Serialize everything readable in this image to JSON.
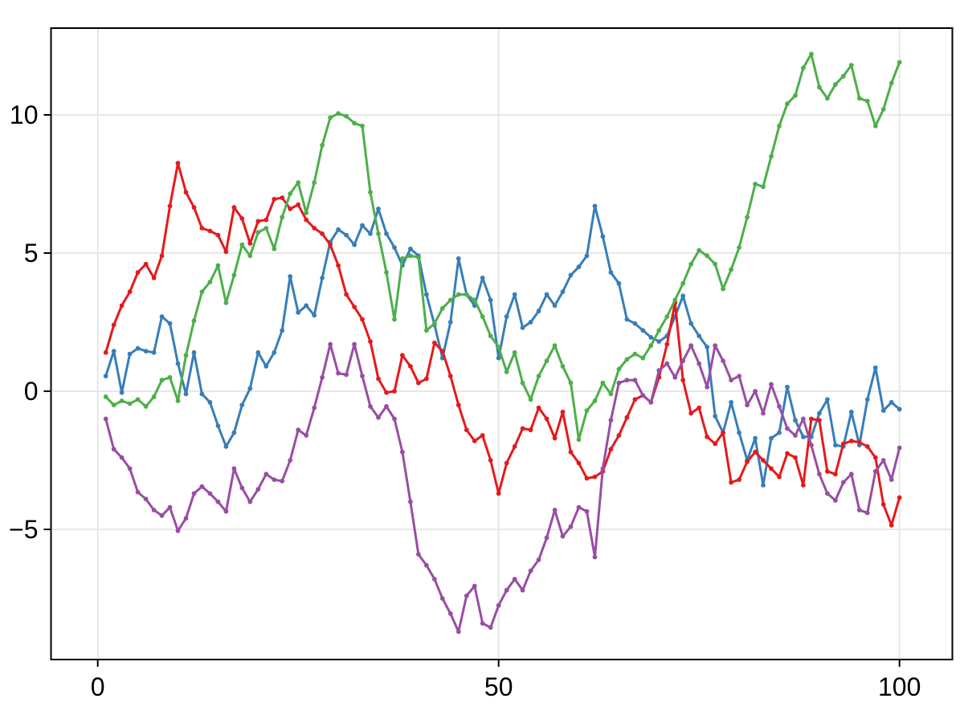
{
  "chart_data": {
    "type": "line",
    "title": "",
    "xlabel": "",
    "ylabel": "",
    "x_start": 1,
    "x_step": 1,
    "n_points": 100,
    "xlim": [
      -5.8,
      106.6
    ],
    "ylim": [
      -9.7,
      13.14
    ],
    "x_ticks": [
      0,
      50,
      100
    ],
    "x_tick_labels": [
      "0",
      "50",
      "100"
    ],
    "y_ticks": [
      -5,
      0,
      5,
      10
    ],
    "y_tick_labels": [
      "−5",
      "0",
      "5",
      "10"
    ],
    "grid": true,
    "legend_position": "none",
    "frame": "box",
    "series": [
      {
        "name": "series-1-blue",
        "color": "#377EB8",
        "values": [
          0.55,
          1.45,
          -0.05,
          1.35,
          1.55,
          1.45,
          1.4,
          2.7,
          2.45,
          1.0,
          -0.1,
          1.4,
          -0.1,
          -0.4,
          -1.25,
          -2.0,
          -1.5,
          -0.5,
          0.1,
          1.4,
          0.9,
          1.4,
          2.2,
          4.15,
          2.85,
          3.1,
          2.75,
          4.1,
          5.4,
          5.85,
          5.65,
          5.3,
          6.0,
          5.7,
          6.6,
          5.7,
          5.2,
          4.55,
          5.15,
          4.9,
          3.5,
          2.4,
          1.2,
          2.5,
          4.8,
          3.5,
          3.1,
          4.1,
          3.3,
          1.2,
          2.7,
          3.5,
          2.3,
          2.5,
          2.9,
          3.5,
          3.1,
          3.6,
          4.2,
          4.5,
          4.9,
          6.7,
          5.6,
          4.3,
          3.9,
          2.6,
          2.45,
          2.2,
          1.95,
          1.8,
          2.0,
          2.7,
          3.45,
          2.45,
          2.0,
          1.6,
          -0.9,
          -1.5,
          -0.4,
          -1.5,
          -2.5,
          -1.7,
          -3.4,
          -1.7,
          -1.5,
          0.15,
          -1.05,
          -1.65,
          -1.65,
          -0.8,
          -0.3,
          -1.95,
          -2.0,
          -0.75,
          -1.95,
          -0.3,
          0.85,
          -0.7,
          -0.4,
          -0.65
        ]
      },
      {
        "name": "series-2-red",
        "color": "#E41A1C",
        "values": [
          1.4,
          2.4,
          3.1,
          3.6,
          4.3,
          4.6,
          4.1,
          4.9,
          6.7,
          8.25,
          7.2,
          6.65,
          5.9,
          5.8,
          5.65,
          5.05,
          6.65,
          6.25,
          5.35,
          6.15,
          6.2,
          6.95,
          7.0,
          6.6,
          6.75,
          6.2,
          5.9,
          5.7,
          5.3,
          4.55,
          3.5,
          3.05,
          2.6,
          1.8,
          0.45,
          -0.05,
          0.0,
          1.3,
          0.9,
          0.3,
          0.45,
          1.75,
          1.45,
          0.55,
          -0.5,
          -1.4,
          -1.8,
          -1.6,
          -2.5,
          -3.7,
          -2.6,
          -2.0,
          -1.35,
          -1.4,
          -0.6,
          -1.0,
          -1.7,
          -0.75,
          -2.2,
          -2.6,
          -3.15,
          -3.1,
          -2.9,
          -2.1,
          -1.6,
          -0.95,
          -0.3,
          -0.15,
          -0.4,
          0.5,
          1.7,
          3.2,
          0.4,
          -0.8,
          -0.6,
          -1.65,
          -1.9,
          -1.5,
          -3.3,
          -3.2,
          -2.55,
          -2.2,
          -2.5,
          -2.8,
          -3.1,
          -2.25,
          -2.4,
          -3.4,
          -1.0,
          -1.05,
          -2.9,
          -3.0,
          -1.9,
          -1.8,
          -1.85,
          -2.0,
          -2.4,
          -4.1,
          -4.85,
          -3.85
        ]
      },
      {
        "name": "series-3-green",
        "color": "#4DAF4A",
        "values": [
          -0.2,
          -0.5,
          -0.35,
          -0.45,
          -0.3,
          -0.55,
          -0.2,
          0.4,
          0.5,
          -0.35,
          1.3,
          2.55,
          3.6,
          3.95,
          4.55,
          3.2,
          4.2,
          5.3,
          4.9,
          5.75,
          5.9,
          5.15,
          6.3,
          7.15,
          7.55,
          6.45,
          7.55,
          8.9,
          9.9,
          10.05,
          9.95,
          9.7,
          9.6,
          7.2,
          5.7,
          4.3,
          2.6,
          4.8,
          4.9,
          4.85,
          2.2,
          2.45,
          3.0,
          3.3,
          3.5,
          3.5,
          3.3,
          2.7,
          2.0,
          1.6,
          0.7,
          1.4,
          0.3,
          -0.3,
          0.55,
          1.1,
          1.65,
          0.9,
          0.3,
          -1.75,
          -0.7,
          -0.35,
          0.3,
          -0.1,
          0.8,
          1.15,
          1.35,
          1.2,
          1.65,
          2.2,
          2.7,
          3.3,
          3.9,
          4.6,
          5.1,
          4.9,
          4.6,
          3.7,
          4.4,
          5.2,
          6.3,
          7.5,
          7.4,
          8.5,
          9.6,
          10.4,
          10.7,
          11.7,
          12.2,
          11.0,
          10.6,
          11.1,
          11.4,
          11.8,
          10.6,
          10.5,
          9.6,
          10.2,
          11.15,
          11.9
        ]
      },
      {
        "name": "series-4-purple",
        "color": "#984EA3",
        "values": [
          -1.0,
          -2.1,
          -2.4,
          -2.8,
          -3.65,
          -3.9,
          -4.3,
          -4.5,
          -4.2,
          -5.05,
          -4.6,
          -3.7,
          -3.45,
          -3.7,
          -4.0,
          -4.35,
          -2.8,
          -3.5,
          -4.0,
          -3.55,
          -3.0,
          -3.2,
          -3.25,
          -2.5,
          -1.4,
          -1.6,
          -0.6,
          0.5,
          1.7,
          0.65,
          0.6,
          1.7,
          0.55,
          -0.55,
          -0.95,
          -0.55,
          -1.0,
          -2.2,
          -4.0,
          -5.9,
          -6.3,
          -6.8,
          -7.5,
          -8.05,
          -8.7,
          -7.4,
          -7.05,
          -8.4,
          -8.55,
          -7.75,
          -7.2,
          -6.8,
          -7.2,
          -6.5,
          -6.1,
          -5.3,
          -4.3,
          -5.25,
          -4.9,
          -4.2,
          -4.35,
          -6.0,
          -2.8,
          -1.05,
          0.3,
          0.4,
          0.4,
          -0.15,
          -0.4,
          0.75,
          1.0,
          0.5,
          1.1,
          1.65,
          1.0,
          0.15,
          1.65,
          1.1,
          0.4,
          0.55,
          -0.5,
          0.0,
          -0.8,
          0.25,
          -0.55,
          -1.35,
          -1.6,
          -1.0,
          -1.95,
          -3.0,
          -3.7,
          -3.95,
          -3.3,
          -3.0,
          -4.3,
          -4.4,
          -2.9,
          -2.5,
          -3.2,
          -2.05
        ]
      }
    ],
    "style": {
      "background": "#FFFFFF",
      "grid_color": "#E4E4E4",
      "spine_color": "#000000",
      "tick_color": "#000000",
      "line_width": 3,
      "marker_radius": 2.9,
      "tick_label_size": 32
    }
  }
}
